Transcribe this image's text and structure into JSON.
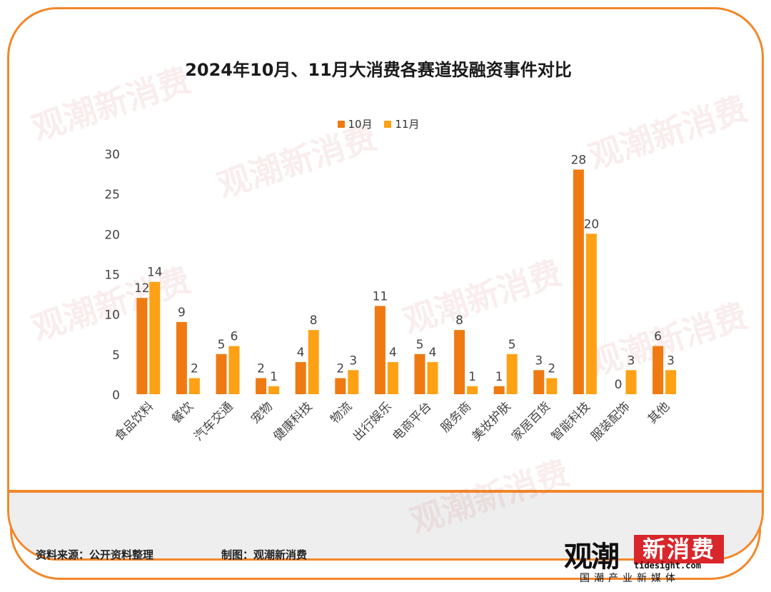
{
  "title": "2024年10月、11月大消费各赛道投融资事件对比",
  "legend": [
    {
      "label": "10月",
      "color": "#f07a12"
    },
    {
      "label": "11月",
      "color": "#ffa114"
    }
  ],
  "chart_data": {
    "type": "bar",
    "title": "2024年10月、11月大消费各赛道投融资事件对比",
    "categories": [
      "食品饮料",
      "餐饮",
      "汽车交通",
      "宠物",
      "健康科技",
      "物流",
      "出行娱乐",
      "电商平台",
      "服务商",
      "美妆护肤",
      "家居百货",
      "智能科技",
      "服装配饰",
      "其他"
    ],
    "series": [
      {
        "name": "10月",
        "values": [
          12,
          9,
          5,
          2,
          4,
          2,
          11,
          5,
          8,
          1,
          3,
          28,
          0,
          6
        ],
        "color": "#f07a12"
      },
      {
        "name": "11月",
        "values": [
          14,
          2,
          6,
          1,
          8,
          3,
          4,
          4,
          1,
          5,
          2,
          20,
          3,
          3
        ],
        "color": "#ffa114"
      }
    ],
    "ylim": [
      0,
      30
    ],
    "yticks": [
      0,
      5,
      10,
      15,
      20,
      25,
      30
    ],
    "xlabel": "",
    "ylabel": "",
    "grid": false,
    "legend_position": "top"
  },
  "footer": {
    "source": "资料来源：公开资料整理",
    "maker": "制图：观潮新消费"
  },
  "logo": {
    "left_text": "观潮",
    "right_text": "新消费",
    "url": "tidesight.com",
    "tagline": "国潮产业新媒体"
  },
  "watermark": "观潮新消费"
}
